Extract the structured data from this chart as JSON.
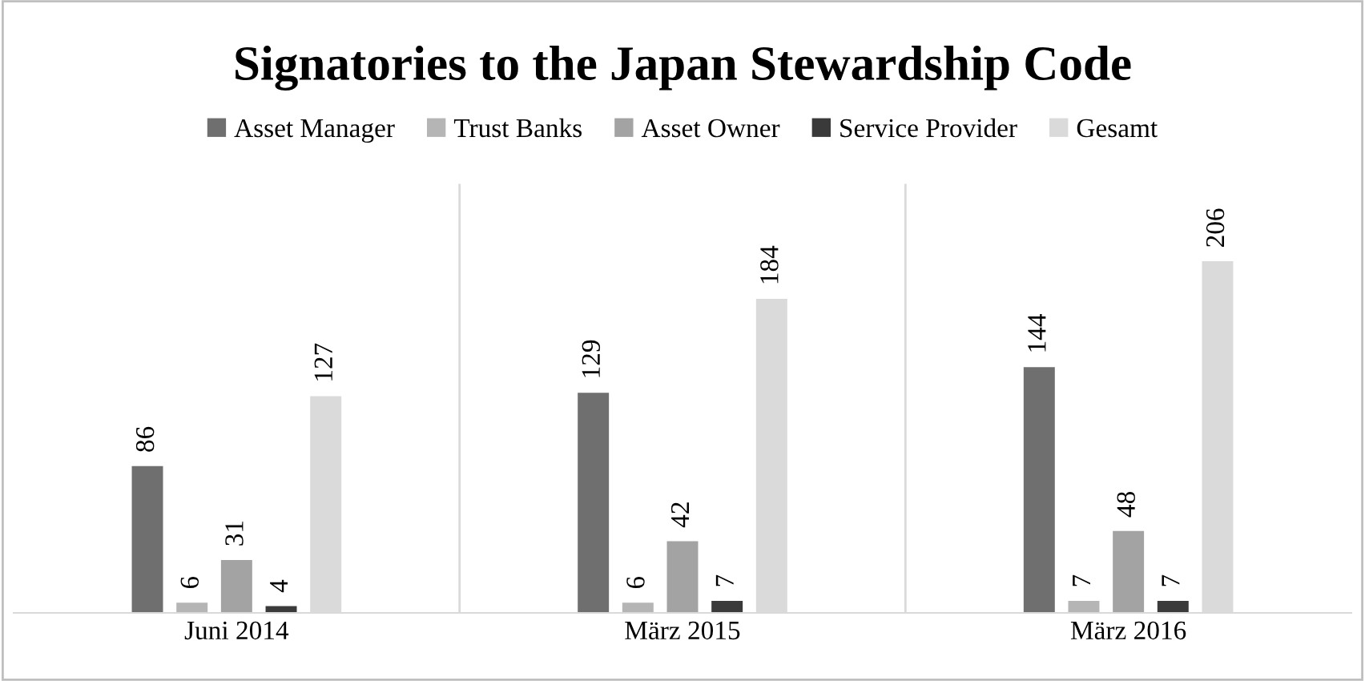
{
  "chart_data": {
    "type": "bar",
    "title": "Signatories to the Japan Stewardship Code",
    "categories": [
      "Juni 2014",
      "März 2015",
      "März 2016"
    ],
    "series": [
      {
        "name": "Asset Manager",
        "color": "#6f6f6f",
        "values": [
          86,
          129,
          144
        ]
      },
      {
        "name": "Trust Banks",
        "color": "#b5b5b5",
        "values": [
          6,
          6,
          7
        ]
      },
      {
        "name": "Asset Owner",
        "color": "#a3a3a3",
        "values": [
          31,
          42,
          48
        ]
      },
      {
        "name": "Service Provider",
        "color": "#3a3a3a",
        "values": [
          4,
          7,
          7
        ]
      },
      {
        "name": "Gesamt",
        "color": "#dadada",
        "values": [
          127,
          184,
          206
        ]
      }
    ],
    "data_labels": true,
    "legend": "top",
    "grid": "x"
  }
}
